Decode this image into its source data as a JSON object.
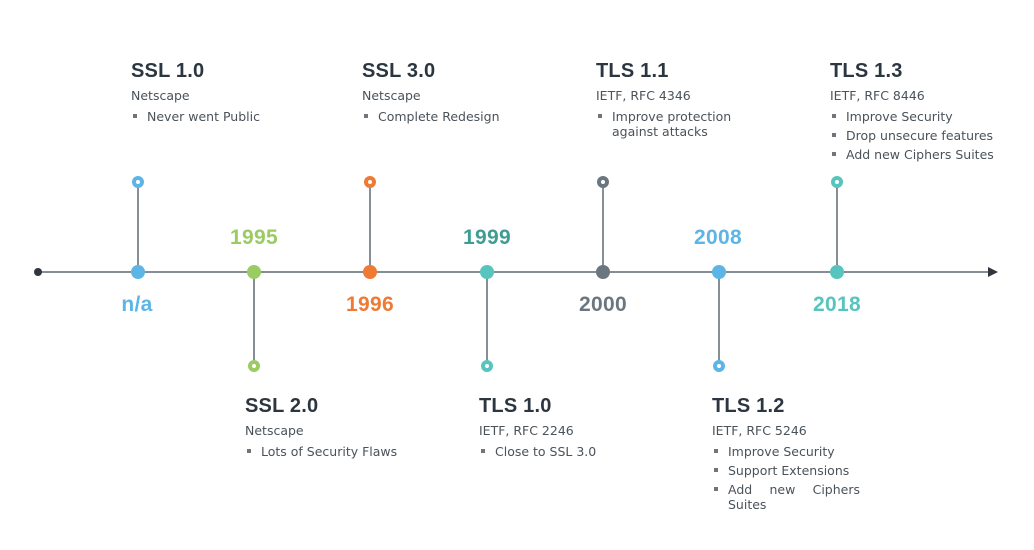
{
  "colors": {
    "axis": "#5d6973",
    "blue": "#5db5e6",
    "green": "#9bcb63",
    "orange": "#ee7a34",
    "teal_dark": "#3f9c92",
    "teal": "#57c4bd",
    "gray": "#6b7780"
  },
  "events": [
    {
      "id": "ssl1",
      "version": "SSL 1.0",
      "org": "Netscape",
      "year": "n/a",
      "notes": [
        "Never went Public"
      ],
      "color": "#5db5e6"
    },
    {
      "id": "ssl2",
      "version": "SSL 2.0",
      "org": "Netscape",
      "year": "1995",
      "notes": [
        "Lots of Security Flaws"
      ],
      "color": "#9bcb63"
    },
    {
      "id": "ssl3",
      "version": "SSL 3.0",
      "org": "Netscape",
      "year": "1996",
      "notes": [
        "Complete Redesign"
      ],
      "color": "#ee7a34"
    },
    {
      "id": "tls10",
      "version": "TLS 1.0",
      "org": "IETF, RFC 2246",
      "year": "1999",
      "notes": [
        "Close to SSL 3.0"
      ],
      "color": "#57c4bd",
      "year_color": "#3f9c92"
    },
    {
      "id": "tls11",
      "version": "TLS 1.1",
      "org": "IETF, RFC 4346",
      "year": "2000",
      "notes": [
        "Improve protection against attacks"
      ],
      "color": "#6b7780"
    },
    {
      "id": "tls12",
      "version": "TLS 1.2",
      "org": "IETF, RFC 5246",
      "year": "2008",
      "notes": [
        "Improve Security",
        "Support Extensions",
        "Add new Ciphers Suites"
      ],
      "color": "#5db5e6"
    },
    {
      "id": "tls13",
      "version": "TLS 1.3",
      "org": "IETF, RFC 8446",
      "year": "2018",
      "notes": [
        "Improve Security",
        "Drop unsecure features",
        "Add new Ciphers Suites"
      ],
      "color": "#57c4bd"
    }
  ]
}
